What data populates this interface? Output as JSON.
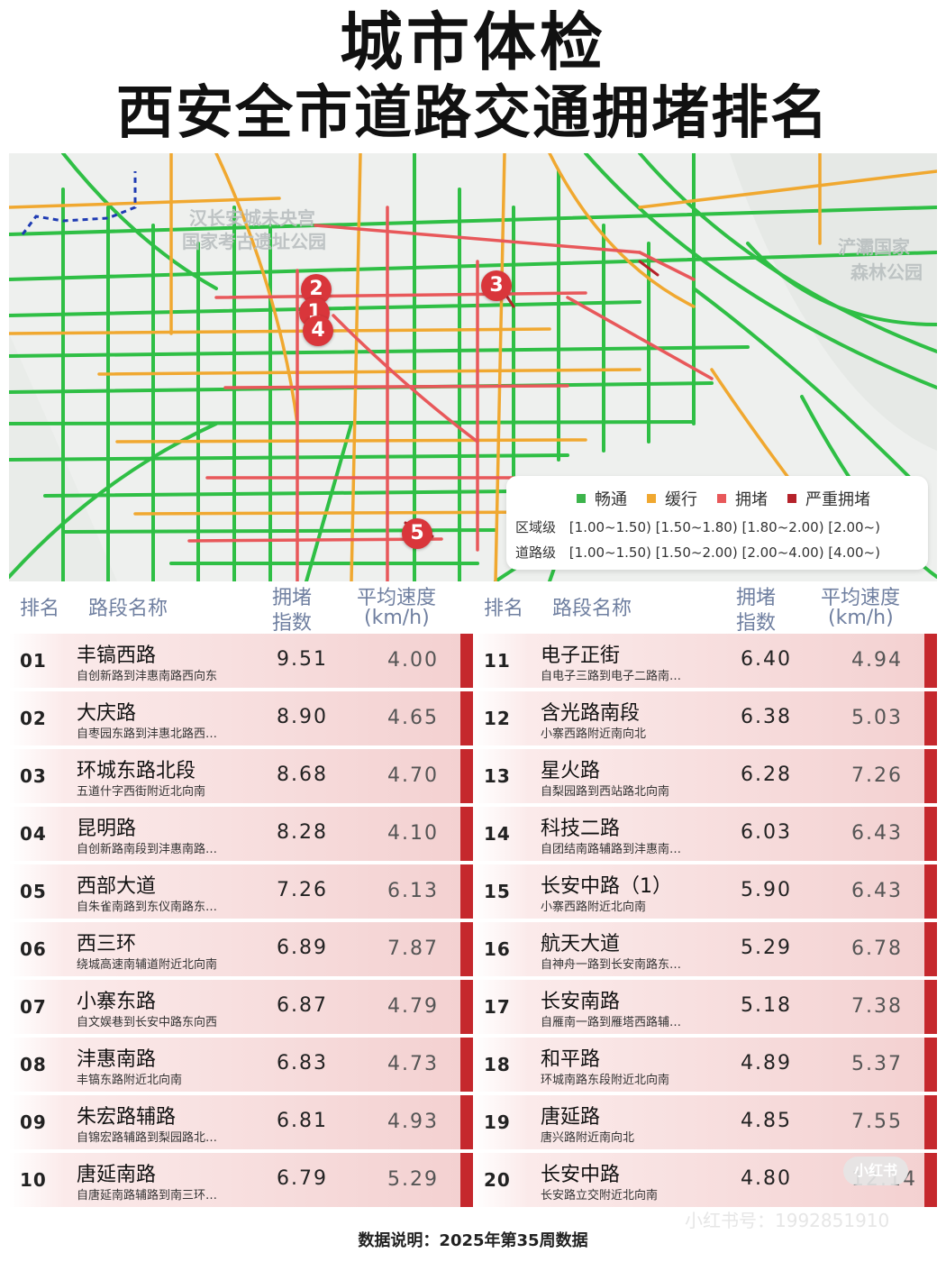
{
  "title_line1": "城市体检",
  "title_line2": "西安全市道路交通拥堵排名",
  "map": {
    "labels": [
      "汉长安城未央宫",
      "国家考古遗址公园",
      "浐灞国家",
      "森林公园"
    ],
    "markers": [
      "2",
      "1",
      "4",
      "3",
      "5"
    ],
    "legend": {
      "items": [
        {
          "label": "畅通",
          "color": "#3cb44b"
        },
        {
          "label": "缓行",
          "color": "#f0a830"
        },
        {
          "label": "拥堵",
          "color": "#e8585a"
        },
        {
          "label": "严重拥堵",
          "color": "#b5222a"
        }
      ],
      "region_label": "区域级",
      "region_ranges": "[1.00~1.50) [1.50~1.80) [1.80~2.00) [2.00~)",
      "road_label": "道路级",
      "road_ranges": "[1.00~1.50) [1.50~2.00) [2.00~4.00) [4.00~)"
    }
  },
  "table_header": {
    "rank": "排名",
    "name": "路段名称",
    "index_l1": "拥堵",
    "index_l2": "指数",
    "speed_l1": "平均速度",
    "speed_l2": "(km/h)"
  },
  "left_rows": [
    {
      "rank": "01",
      "name": "丰镐西路",
      "desc": "自创新路到沣惠南路西向东",
      "index": "9.51",
      "speed": "4.00"
    },
    {
      "rank": "02",
      "name": "大庆路",
      "desc": "自枣园东路到沣惠北路西…",
      "index": "8.90",
      "speed": "4.65"
    },
    {
      "rank": "03",
      "name": "环城东路北段",
      "desc": "五道什字西街附近北向南",
      "index": "8.68",
      "speed": "4.70"
    },
    {
      "rank": "04",
      "name": "昆明路",
      "desc": "自创新路南段到沣惠南路…",
      "index": "8.28",
      "speed": "4.10"
    },
    {
      "rank": "05",
      "name": "西部大道",
      "desc": "自朱雀南路到东仪南路东…",
      "index": "7.26",
      "speed": "6.13"
    },
    {
      "rank": "06",
      "name": "西三环",
      "desc": "绕城高速南辅道附近北向南",
      "index": "6.89",
      "speed": "7.87"
    },
    {
      "rank": "07",
      "name": "小寨东路",
      "desc": "自文娱巷到长安中路东向西",
      "index": "6.87",
      "speed": "4.79"
    },
    {
      "rank": "08",
      "name": "沣惠南路",
      "desc": "丰镐东路附近北向南",
      "index": "6.83",
      "speed": "4.73"
    },
    {
      "rank": "09",
      "name": "朱宏路辅路",
      "desc": "自锦宏路辅路到梨园路北…",
      "index": "6.81",
      "speed": "4.93"
    },
    {
      "rank": "10",
      "name": "唐延南路",
      "desc": "自唐延南路辅路到南三环…",
      "index": "6.79",
      "speed": "5.29"
    }
  ],
  "right_rows": [
    {
      "rank": "11",
      "name": "电子正街",
      "desc": "自电子三路到电子二路南…",
      "index": "6.40",
      "speed": "4.94"
    },
    {
      "rank": "12",
      "name": "含光路南段",
      "desc": "小寨西路附近南向北",
      "index": "6.38",
      "speed": "5.03"
    },
    {
      "rank": "13",
      "name": "星火路",
      "desc": "自梨园路到西站路北向南",
      "index": "6.28",
      "speed": "7.26"
    },
    {
      "rank": "14",
      "name": "科技二路",
      "desc": "自团结南路辅路到沣惠南…",
      "index": "6.03",
      "speed": "6.43"
    },
    {
      "rank": "15",
      "name": "长安中路（1）",
      "desc": "小寨西路附近北向南",
      "index": "5.90",
      "speed": "6.43"
    },
    {
      "rank": "16",
      "name": "航天大道",
      "desc": "自神舟一路到长安南路东…",
      "index": "5.29",
      "speed": "6.78"
    },
    {
      "rank": "17",
      "name": "长安南路",
      "desc": "自雁南一路到雁塔西路辅…",
      "index": "5.18",
      "speed": "7.38"
    },
    {
      "rank": "18",
      "name": "和平路",
      "desc": "环城南路东段附近北向南",
      "index": "4.89",
      "speed": "5.37"
    },
    {
      "rank": "19",
      "name": "唐延路",
      "desc": "唐兴路附近南向北",
      "index": "4.85",
      "speed": "7.55"
    },
    {
      "rank": "20",
      "name": "长安中路",
      "desc": "长安路立交附近北向南",
      "index": "4.80",
      "speed": "12.14"
    }
  ],
  "footer": "数据说明：2025年第35周数据",
  "watermark": "小红书号：1992851910",
  "logo": "小红书"
}
